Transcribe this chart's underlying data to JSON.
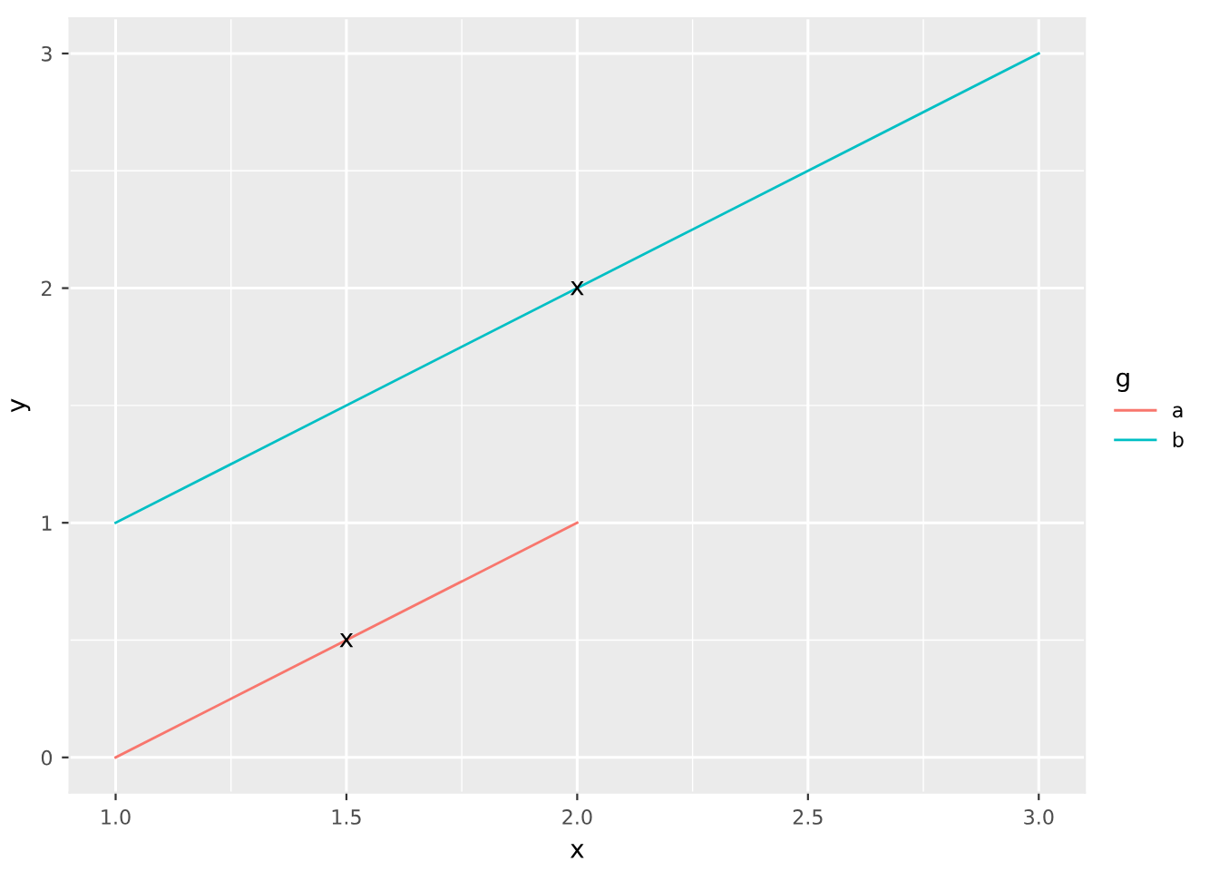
{
  "chart_data": {
    "type": "line",
    "xlabel": "x",
    "ylabel": "y",
    "legend_title": "g",
    "xlim": [
      0.9,
      3.1
    ],
    "ylim": [
      -0.15,
      3.15
    ],
    "xticks": [
      {
        "value": 1,
        "label": "1.0"
      },
      {
        "value": 1.5,
        "label": "1.5"
      },
      {
        "value": 2,
        "label": "2.0"
      },
      {
        "value": 2.5,
        "label": "2.5"
      },
      {
        "value": 3,
        "label": "3.0"
      }
    ],
    "yticks": [
      0,
      1,
      2,
      3
    ],
    "grid": true,
    "legend": "right",
    "series": [
      {
        "name": "a",
        "color": "#f8766d",
        "x": [
          1,
          2
        ],
        "values": [
          0,
          1
        ]
      },
      {
        "name": "b",
        "color": "#00bfc4",
        "x": [
          1,
          3
        ],
        "values": [
          1,
          3
        ]
      }
    ],
    "annotations": [
      {
        "text": "x",
        "x": 1.5,
        "y": 0.5
      },
      {
        "text": "x",
        "x": 2,
        "y": 2
      }
    ]
  }
}
